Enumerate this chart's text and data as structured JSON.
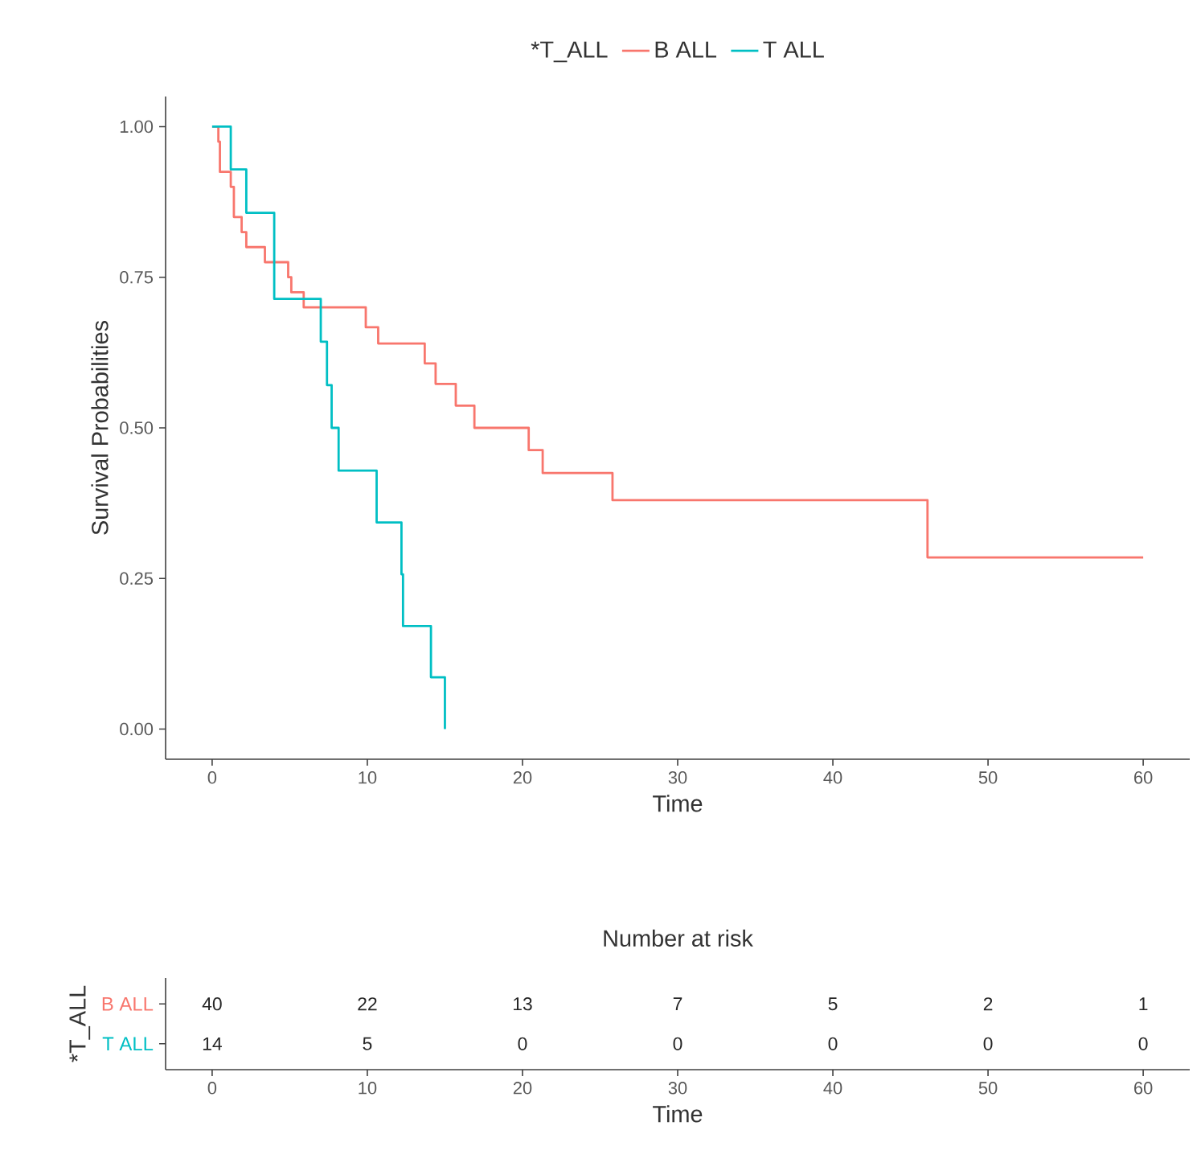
{
  "chart_data": [
    {
      "type": "step",
      "xlabel": "Time",
      "ylabel": "Survival Probabilities",
      "legend_title": "*T_ALL",
      "legend": "top",
      "grid": false,
      "xlim": [
        -3,
        63
      ],
      "xticks": [
        0,
        10,
        20,
        30,
        40,
        50,
        60
      ],
      "ylim": [
        -0.05,
        1.05
      ],
      "yticks": [
        {
          "value": 0,
          "label": "0.00"
        },
        {
          "value": 0.25,
          "label": "0.25"
        },
        {
          "value": 0.5,
          "label": "0.50"
        },
        {
          "value": 0.75,
          "label": "0.75"
        },
        {
          "value": 1,
          "label": "1.00"
        }
      ],
      "series": [
        {
          "name": "B ALL",
          "color": "#f8766d",
          "x": [
            0,
            0.4,
            0.5,
            1.2,
            1.4,
            1.9,
            2.2,
            3.4,
            4.9,
            5.1,
            5.9,
            9.9,
            10.7,
            13.7,
            14.4,
            15.7,
            16.9,
            20.4,
            21.3,
            25.8,
            46.1,
            60
          ],
          "values": [
            1,
            0.975,
            0.925,
            0.9,
            0.85,
            0.825,
            0.8,
            0.775,
            0.75,
            0.725,
            0.7,
            0.667,
            0.64,
            0.607,
            0.573,
            0.537,
            0.5,
            0.463,
            0.425,
            0.38,
            0.285,
            0.285
          ]
        },
        {
          "name": "T ALL",
          "color": "#00bfc4",
          "x": [
            0,
            1.2,
            2.2,
            4.0,
            7.0,
            7.4,
            7.7,
            8.15,
            10.6,
            12.2,
            12.3,
            14.1,
            15.0
          ],
          "values": [
            1,
            0.929,
            0.857,
            0.714,
            0.643,
            0.571,
            0.5,
            0.429,
            0.343,
            0.257,
            0.171,
            0.086,
            0
          ]
        }
      ]
    },
    {
      "type": "heatmap",
      "title": "Number at risk",
      "xlabel": "Time",
      "ylabel": "*T_ALL",
      "x": [
        0,
        10,
        20,
        30,
        40,
        50,
        60
      ],
      "xlim": [
        -3,
        63
      ],
      "xticks": [
        0,
        10,
        20,
        30,
        40,
        50,
        60
      ],
      "y_categories": [
        "B ALL",
        "T ALL"
      ],
      "data_labels": true,
      "cells": [
        [
          40,
          22,
          13,
          7,
          5,
          2,
          1
        ],
        [
          14,
          5,
          0,
          0,
          0,
          0,
          0
        ]
      ]
    }
  ]
}
